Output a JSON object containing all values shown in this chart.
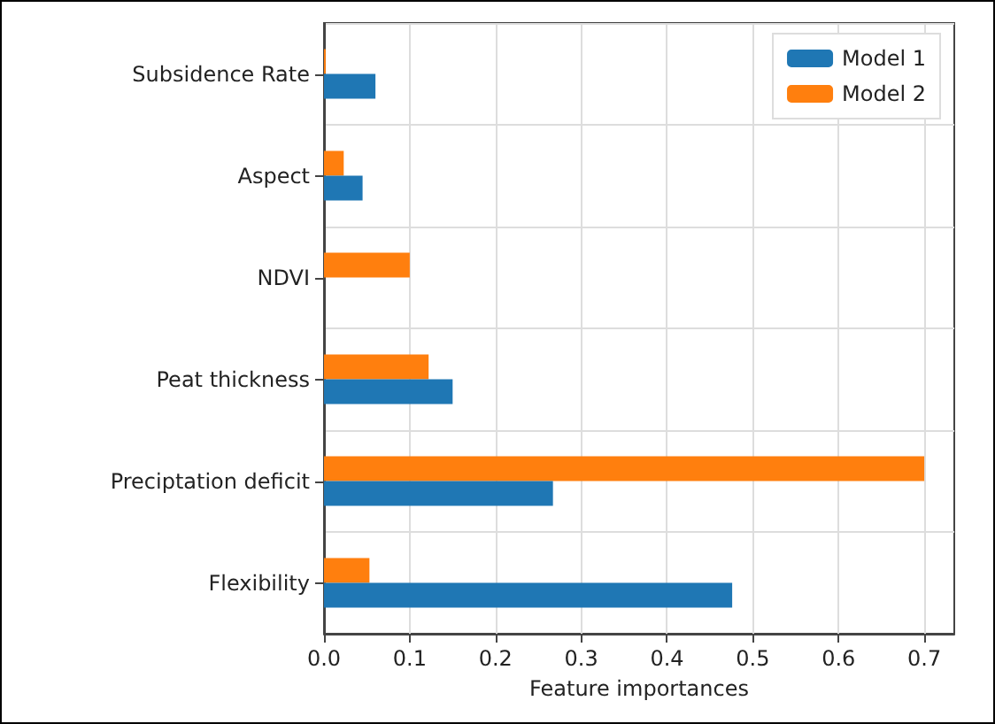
{
  "chart_data": {
    "type": "bar",
    "orientation": "horizontal",
    "xlabel": "Feature importances",
    "categories": [
      "Subsidence Rate",
      "Aspect",
      "NDVI",
      "Peat thickness",
      "Preciptation deficit",
      "Flexibility"
    ],
    "series": [
      {
        "name": "Model 1",
        "color": "#1f77b4",
        "values": [
          0.06,
          0.045,
          0,
          0.15,
          0.267,
          0.476
        ]
      },
      {
        "name": "Model 2",
        "color": "#ff7f0e",
        "values": [
          0.002,
          0.023,
          0.1,
          0.122,
          0.7,
          0.053
        ]
      }
    ],
    "xlim": [
      0,
      0.735
    ],
    "xticks": [
      {
        "value": 0,
        "label": "0.0"
      },
      0.1,
      0.2,
      0.3,
      0.4,
      0.5,
      0.6,
      0.7
    ],
    "grid": true,
    "legend": "top right"
  }
}
